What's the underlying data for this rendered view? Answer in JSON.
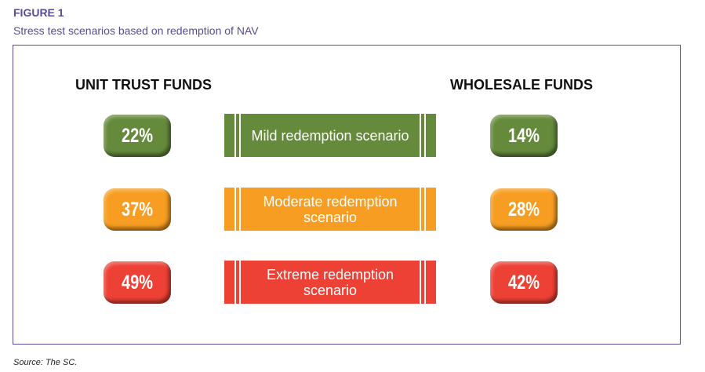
{
  "figure": {
    "label": "FIGURE 1",
    "subtitle": "Stress test scenarios based on redemption of NAV"
  },
  "headers": {
    "left": "UNIT TRUST FUNDS",
    "right": "WHOLESALE FUNDS"
  },
  "rows": [
    {
      "scenario": "Mild redemption scenario",
      "unit_trust": "22%",
      "wholesale": "14%",
      "color": "#658a3c"
    },
    {
      "scenario": "Moderate redemption scenario",
      "unit_trust": "37%",
      "wholesale": "28%",
      "color": "#f79d21"
    },
    {
      "scenario": "Extreme redemption scenario",
      "unit_trust": "49%",
      "wholesale": "42%",
      "color": "#ee4135"
    }
  ],
  "source": "Source: The SC."
}
